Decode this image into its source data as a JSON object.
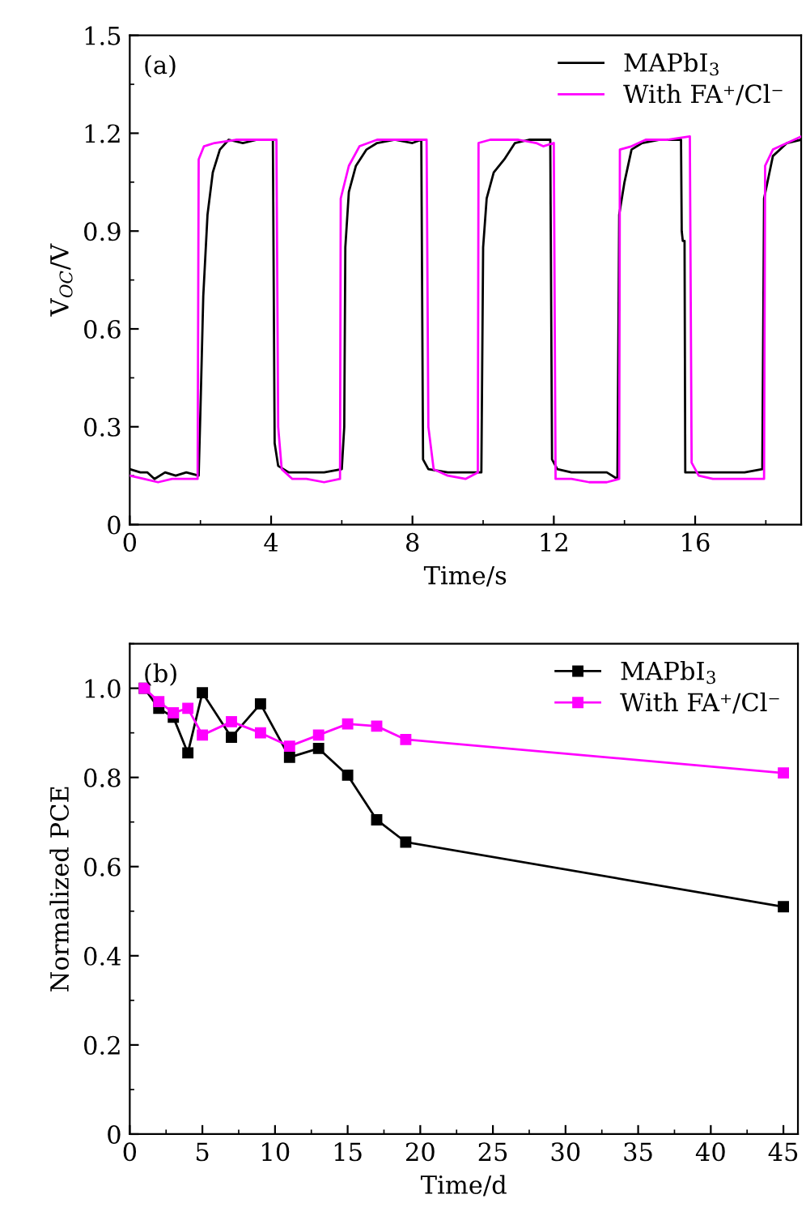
{
  "chart_data": [
    {
      "type": "line",
      "xlabel": "Time/s",
      "ylabel": "V$_{OC}$/V",
      "annotations": [
        "(a)"
      ],
      "xlim": [
        0,
        19
      ],
      "xticks": [
        0,
        4,
        8,
        12,
        16
      ],
      "ylim": [
        0,
        1.5
      ],
      "yticks": [
        0,
        0.3,
        0.6,
        0.9,
        1.2,
        1.5
      ],
      "legend": "top right",
      "grid": false,
      "marker": "none",
      "series": [
        {
          "name": "MAPbI$_{3}$",
          "color": "#000000",
          "x": [
            0,
            0.3,
            0.5,
            0.7,
            1.0,
            1.3,
            1.6,
            1.95,
            2.0,
            2.08,
            2.2,
            2.35,
            2.55,
            2.8,
            3.2,
            3.6,
            4.05,
            4.1,
            4.2,
            4.5,
            5.0,
            5.5,
            6.0,
            6.07,
            6.1,
            6.2,
            6.4,
            6.7,
            7.0,
            7.5,
            8.0,
            8.25,
            8.3,
            8.45,
            9.0,
            9.5,
            9.95,
            10.0,
            10.1,
            10.3,
            10.6,
            10.9,
            11.3,
            11.9,
            11.95,
            12.1,
            12.5,
            13.0,
            13.5,
            13.8,
            13.85,
            14.0,
            14.2,
            14.5,
            15.0,
            15.6,
            15.62,
            15.65,
            15.7,
            15.72,
            16.2,
            16.8,
            17.4,
            17.9,
            17.95,
            18.2,
            18.6,
            19.0
          ],
          "values": [
            0.17,
            0.16,
            0.16,
            0.14,
            0.16,
            0.15,
            0.16,
            0.15,
            0.35,
            0.7,
            0.95,
            1.08,
            1.15,
            1.18,
            1.17,
            1.18,
            1.18,
            0.25,
            0.18,
            0.16,
            0.16,
            0.16,
            0.17,
            0.3,
            0.85,
            1.02,
            1.1,
            1.15,
            1.17,
            1.18,
            1.17,
            1.18,
            0.2,
            0.17,
            0.16,
            0.16,
            0.16,
            0.85,
            1.0,
            1.08,
            1.12,
            1.17,
            1.18,
            1.18,
            0.2,
            0.17,
            0.16,
            0.16,
            0.16,
            0.14,
            0.95,
            1.05,
            1.15,
            1.17,
            1.18,
            1.18,
            0.9,
            0.87,
            0.87,
            0.16,
            0.16,
            0.16,
            0.16,
            0.17,
            1.0,
            1.13,
            1.17,
            1.18
          ]
        },
        {
          "name": "With FA⁺/Cl⁻",
          "color": "#ff00ff",
          "x": [
            0,
            0.4,
            0.8,
            1.2,
            1.6,
            1.92,
            1.95,
            2.1,
            2.4,
            3.0,
            3.5,
            4.15,
            4.2,
            4.3,
            4.6,
            5.0,
            5.5,
            5.95,
            5.97,
            6.2,
            6.5,
            7.0,
            7.5,
            8.1,
            8.4,
            8.45,
            8.6,
            9.0,
            9.5,
            9.85,
            9.87,
            10.2,
            10.6,
            11.0,
            11.5,
            11.7,
            12.0,
            12.05,
            12.5,
            13.0,
            13.5,
            13.85,
            13.87,
            14.2,
            14.6,
            15.2,
            15.85,
            15.9,
            16.1,
            16.5,
            17.0,
            17.5,
            17.95,
            17.98,
            18.2,
            18.6,
            19.0
          ],
          "values": [
            0.15,
            0.14,
            0.13,
            0.14,
            0.14,
            0.14,
            1.12,
            1.16,
            1.17,
            1.18,
            1.18,
            1.18,
            0.3,
            0.17,
            0.14,
            0.14,
            0.13,
            0.14,
            1.0,
            1.1,
            1.16,
            1.18,
            1.18,
            1.18,
            1.18,
            0.3,
            0.17,
            0.15,
            0.14,
            0.16,
            1.17,
            1.18,
            1.18,
            1.18,
            1.17,
            1.16,
            1.17,
            0.14,
            0.14,
            0.13,
            0.13,
            0.14,
            1.15,
            1.16,
            1.18,
            1.18,
            1.19,
            0.19,
            0.15,
            0.14,
            0.14,
            0.14,
            0.14,
            1.1,
            1.15,
            1.17,
            1.19
          ]
        }
      ]
    },
    {
      "type": "line",
      "xlabel": "Time/d",
      "ylabel": "Normalized PCE",
      "annotations": [
        "(b)"
      ],
      "xlim": [
        0,
        46
      ],
      "xticks": [
        0,
        5,
        10,
        15,
        20,
        25,
        30,
        35,
        40,
        45
      ],
      "ylim": [
        0,
        1.1
      ],
      "yticks": [
        0,
        0.2,
        0.4,
        0.6,
        0.8,
        {
          "value": 1,
          "label": "1.0"
        }
      ],
      "legend": "top right",
      "grid": false,
      "marker": "square",
      "series": [
        {
          "name": "MAPbI$_{3}$",
          "color": "#000000",
          "x": [
            1,
            2,
            3,
            4,
            5,
            7,
            9,
            11,
            13,
            15,
            17,
            19,
            45
          ],
          "values": [
            1.0,
            0.955,
            0.935,
            0.855,
            0.99,
            0.89,
            0.965,
            0.845,
            0.865,
            0.805,
            0.705,
            0.655,
            0.51
          ]
        },
        {
          "name": "With FA⁺/Cl⁻",
          "color": "#ff00ff",
          "x": [
            1,
            2,
            3,
            4,
            5,
            7,
            9,
            11,
            13,
            15,
            17,
            19,
            45
          ],
          "values": [
            1.0,
            0.97,
            0.945,
            0.955,
            0.895,
            0.925,
            0.9,
            0.87,
            0.895,
            0.92,
            0.915,
            0.885,
            0.81
          ]
        }
      ]
    }
  ]
}
